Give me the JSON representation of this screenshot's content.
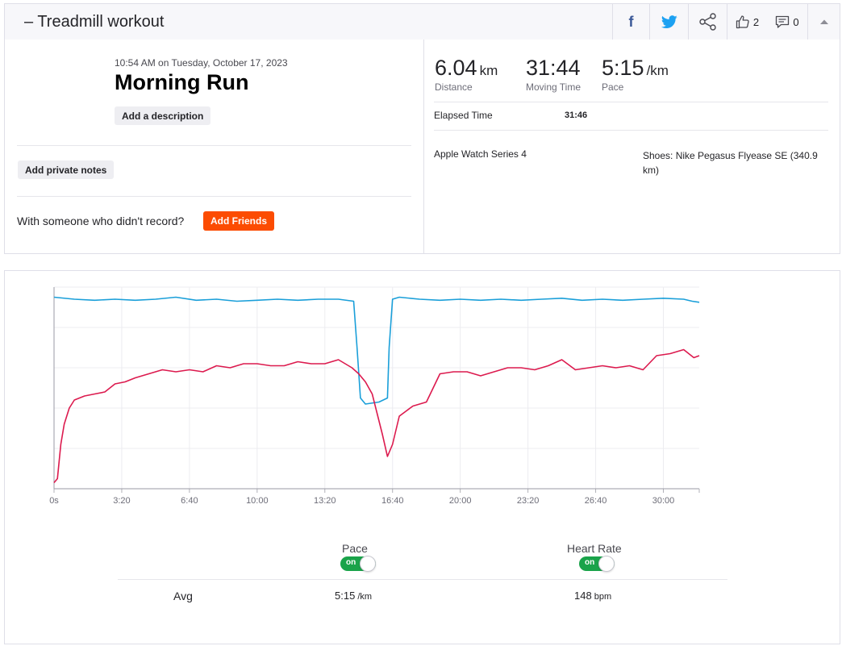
{
  "header": {
    "title": "– Treadmill workout",
    "kudos_count": "2",
    "comments_count": "0"
  },
  "activity": {
    "datetime": "10:54 AM on Tuesday, October 17, 2023",
    "name": "Morning Run",
    "add_description_label": "Add a description",
    "add_notes_label": "Add private notes",
    "with_someone_text": "With someone who didn't record?",
    "add_friends_label": "Add Friends"
  },
  "stats": {
    "distance": {
      "value": "6.04",
      "unit": "km",
      "label": "Distance"
    },
    "moving_time": {
      "value": "31:44",
      "label": "Moving Time"
    },
    "pace": {
      "value": "5:15",
      "unit": "/km",
      "label": "Pace"
    },
    "elapsed_label": "Elapsed Time",
    "elapsed_value": "31:46",
    "device": "Apple Watch Series 4",
    "shoes": "Shoes: Nike Pegasus Flyease SE (340.9 km)"
  },
  "colors": {
    "pace": "#1a9fd9",
    "heart_rate": "#dc1a4e",
    "brand": "#fc4c02",
    "toggle_on": "#1aa34a"
  },
  "icons": {
    "facebook": "facebook-icon",
    "twitter": "twitter-icon",
    "share": "share-icon",
    "kudos": "thumbs-up-icon",
    "comments": "comment-icon",
    "collapse": "caret-up-icon"
  },
  "chart_data": {
    "type": "line",
    "x_unit": "seconds",
    "xlim": [
      0,
      1906
    ],
    "x_ticks": [
      0,
      200,
      400,
      600,
      800,
      1000,
      1200,
      1400,
      1600,
      1800
    ],
    "x_tick_labels": [
      "0s",
      "3:20",
      "6:40",
      "10:00",
      "13:20",
      "16:40",
      "20:00",
      "23:20",
      "26:40",
      "30:00"
    ],
    "grid": true,
    "legend": "below",
    "series": [
      {
        "name": "Pace",
        "toggle": "on",
        "avg": "5:15",
        "avg_unit": "/km",
        "x": [
          0,
          60,
          120,
          180,
          240,
          300,
          360,
          420,
          480,
          540,
          600,
          660,
          720,
          780,
          840,
          885,
          895,
          905,
          920,
          960,
          985,
          990,
          1000,
          1020,
          1080,
          1140,
          1200,
          1260,
          1320,
          1380,
          1440,
          1500,
          1560,
          1620,
          1680,
          1740,
          1800,
          1860,
          1885,
          1906
        ],
        "y": [
          0.95,
          0.94,
          0.935,
          0.94,
          0.935,
          0.94,
          0.95,
          0.935,
          0.94,
          0.93,
          0.935,
          0.94,
          0.935,
          0.94,
          0.94,
          0.93,
          0.7,
          0.45,
          0.42,
          0.43,
          0.45,
          0.7,
          0.94,
          0.95,
          0.94,
          0.935,
          0.94,
          0.935,
          0.94,
          0.935,
          0.94,
          0.945,
          0.935,
          0.94,
          0.935,
          0.94,
          0.945,
          0.94,
          0.93,
          0.925
        ]
      },
      {
        "name": "Heart Rate",
        "toggle": "on",
        "avg": "148",
        "avg_unit": "bpm",
        "x": [
          0,
          10,
          20,
          30,
          45,
          60,
          90,
          120,
          150,
          180,
          210,
          240,
          280,
          320,
          360,
          400,
          440,
          480,
          520,
          560,
          600,
          640,
          680,
          720,
          760,
          800,
          840,
          880,
          900,
          920,
          940,
          955,
          970,
          985,
          1000,
          1020,
          1060,
          1100,
          1140,
          1180,
          1220,
          1260,
          1300,
          1340,
          1380,
          1420,
          1460,
          1500,
          1540,
          1580,
          1620,
          1660,
          1700,
          1740,
          1780,
          1820,
          1860,
          1890,
          1906
        ],
        "y": [
          0.03,
          0.05,
          0.22,
          0.32,
          0.4,
          0.44,
          0.46,
          0.47,
          0.48,
          0.52,
          0.53,
          0.55,
          0.57,
          0.59,
          0.58,
          0.59,
          0.58,
          0.61,
          0.6,
          0.62,
          0.62,
          0.61,
          0.61,
          0.63,
          0.62,
          0.62,
          0.64,
          0.6,
          0.57,
          0.53,
          0.47,
          0.37,
          0.27,
          0.16,
          0.22,
          0.36,
          0.41,
          0.43,
          0.57,
          0.58,
          0.58,
          0.56,
          0.58,
          0.6,
          0.6,
          0.59,
          0.61,
          0.64,
          0.59,
          0.6,
          0.61,
          0.6,
          0.61,
          0.59,
          0.66,
          0.67,
          0.69,
          0.65,
          0.66
        ]
      }
    ]
  }
}
